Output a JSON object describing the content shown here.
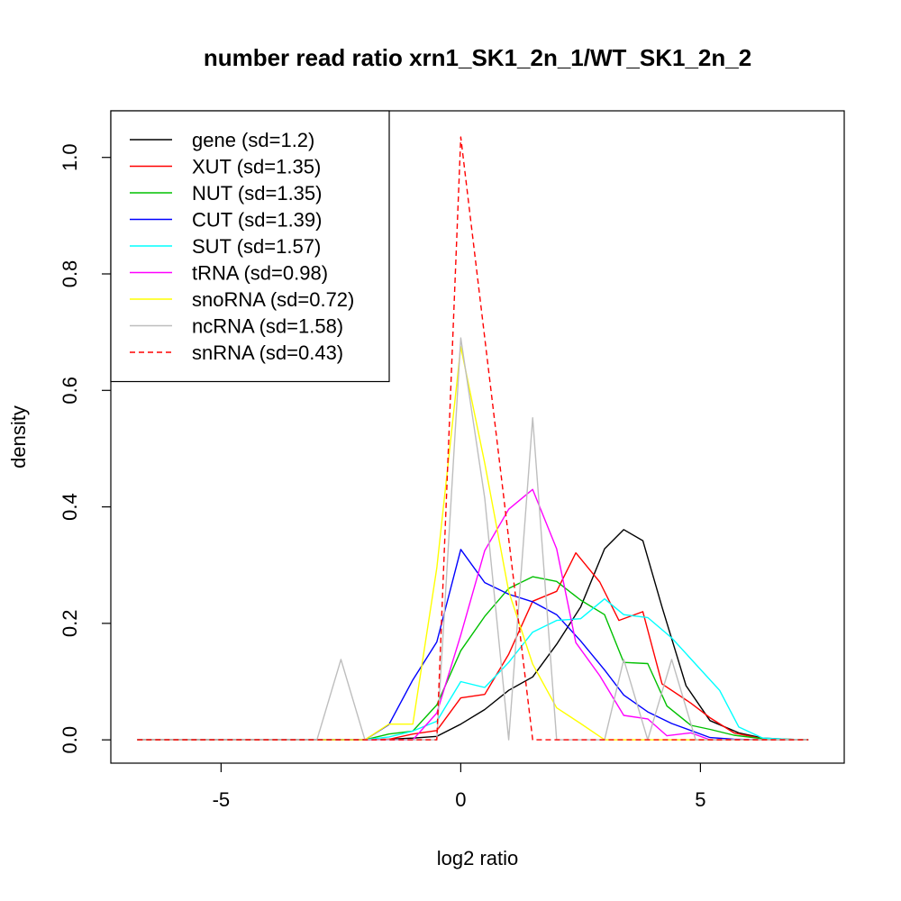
{
  "chart_data": {
    "type": "line",
    "title": "number read ratio xrn1_SK1_2n_1/WT_SK1_2n_2",
    "xlabel": "log2 ratio",
    "ylabel": "density",
    "xlim": [
      -7.3,
      8.0
    ],
    "ylim": [
      -0.04,
      1.08
    ],
    "xticks": [
      -5,
      0,
      5
    ],
    "xtick_labels": [
      "-5",
      "0",
      "5"
    ],
    "yticks": [
      0.0,
      0.2,
      0.4,
      0.6,
      0.8,
      1.0
    ],
    "ytick_labels": [
      "0.0",
      "0.2",
      "0.4",
      "0.6",
      "0.8",
      "1.0"
    ],
    "grid": false,
    "legend_position": "top-left",
    "series": [
      {
        "name": "gene (sd=1.2)",
        "color": "#000000",
        "dash": "solid",
        "x": [
          -6.75,
          -3.0,
          -2.0,
          -1.5,
          -1.0,
          -0.5,
          0.0,
          0.5,
          1.0,
          1.5,
          2.0,
          2.5,
          3.0,
          3.4,
          3.8,
          4.2,
          4.7,
          5.2,
          5.8,
          6.3,
          6.8,
          7.25
        ],
        "y": [
          0.0,
          0.0,
          0.0,
          0.001,
          0.003,
          0.006,
          0.027,
          0.052,
          0.085,
          0.108,
          0.164,
          0.228,
          0.328,
          0.361,
          0.342,
          0.228,
          0.093,
          0.033,
          0.012,
          0.003,
          0.001,
          0.0
        ]
      },
      {
        "name": "XUT (sd=1.35)",
        "color": "#ff0000",
        "dash": "solid",
        "x": [
          -6.75,
          -3.0,
          -2.0,
          -1.5,
          -1.0,
          -0.5,
          0.0,
          0.5,
          1.0,
          1.5,
          2.0,
          2.4,
          2.9,
          3.3,
          3.8,
          4.2,
          4.8,
          5.2,
          5.7,
          6.3,
          7.25
        ],
        "y": [
          0.0,
          0.0,
          0.0,
          0.001,
          0.01,
          0.016,
          0.072,
          0.078,
          0.147,
          0.238,
          0.255,
          0.321,
          0.271,
          0.205,
          0.22,
          0.096,
          0.063,
          0.038,
          0.012,
          0.002,
          0.0
        ]
      },
      {
        "name": "NUT (sd=1.35)",
        "color": "#00c000",
        "dash": "solid",
        "x": [
          -6.75,
          -3.0,
          -2.0,
          -1.5,
          -1.0,
          -0.5,
          0.0,
          0.5,
          1.0,
          1.5,
          2.0,
          2.5,
          3.0,
          3.4,
          3.9,
          4.3,
          4.8,
          5.2,
          5.7,
          6.3,
          7.25
        ],
        "y": [
          0.0,
          0.0,
          0.0,
          0.01,
          0.015,
          0.06,
          0.153,
          0.212,
          0.26,
          0.28,
          0.272,
          0.24,
          0.215,
          0.133,
          0.131,
          0.058,
          0.025,
          0.018,
          0.008,
          0.002,
          0.0
        ]
      },
      {
        "name": "CUT (sd=1.39)",
        "color": "#0000ff",
        "dash": "solid",
        "x": [
          -6.75,
          -3.0,
          -2.0,
          -1.5,
          -1.0,
          -0.5,
          0.0,
          0.5,
          1.0,
          1.5,
          2.0,
          2.5,
          3.0,
          3.4,
          3.9,
          4.4,
          5.2,
          5.7,
          6.3,
          7.25
        ],
        "y": [
          0.0,
          0.0,
          0.0,
          0.026,
          0.103,
          0.168,
          0.327,
          0.27,
          0.25,
          0.237,
          0.215,
          0.17,
          0.12,
          0.077,
          0.048,
          0.028,
          0.004,
          0.001,
          0.0,
          0.0
        ]
      },
      {
        "name": "SUT (sd=1.57)",
        "color": "#00ffff",
        "dash": "solid",
        "x": [
          -6.75,
          -3.0,
          -2.0,
          -1.5,
          -1.0,
          -0.5,
          0.0,
          0.5,
          1.0,
          1.5,
          2.0,
          2.5,
          3.0,
          3.4,
          3.9,
          4.4,
          4.9,
          5.4,
          5.8,
          6.3,
          6.8,
          7.25
        ],
        "y": [
          0.0,
          0.0,
          0.0,
          0.005,
          0.015,
          0.032,
          0.1,
          0.09,
          0.133,
          0.185,
          0.205,
          0.208,
          0.242,
          0.215,
          0.21,
          0.175,
          0.13,
          0.085,
          0.022,
          0.003,
          0.001,
          0.0
        ]
      },
      {
        "name": "tRNA (sd=0.98)",
        "color": "#ff00ff",
        "dash": "solid",
        "x": [
          -6.75,
          -3.0,
          -2.0,
          -1.5,
          -1.0,
          -0.5,
          0.0,
          0.5,
          1.0,
          1.5,
          2.0,
          2.4,
          2.9,
          3.4,
          3.9,
          4.3,
          4.8,
          5.2,
          6.3,
          7.25
        ],
        "y": [
          0.0,
          0.0,
          0.0,
          0.0,
          0.0,
          0.046,
          0.18,
          0.325,
          0.396,
          0.43,
          0.328,
          0.167,
          0.11,
          0.042,
          0.036,
          0.007,
          0.012,
          0.0,
          0.0,
          0.0
        ]
      },
      {
        "name": "snoRNA (sd=0.72)",
        "color": "#ffff00",
        "dash": "solid",
        "x": [
          -6.75,
          -3.0,
          -2.0,
          -1.5,
          -1.0,
          -0.5,
          0.0,
          0.5,
          1.0,
          1.5,
          2.0,
          2.5,
          3.0,
          3.4,
          7.25
        ],
        "y": [
          0.0,
          0.0,
          0.0,
          0.027,
          0.027,
          0.295,
          0.675,
          0.475,
          0.255,
          0.13,
          0.055,
          0.028,
          0.0,
          0.0,
          0.0
        ]
      },
      {
        "name": "ncRNA (sd=1.58)",
        "color": "#bebebe",
        "dash": "solid",
        "x": [
          -6.75,
          -3.0,
          -2.5,
          -2.0,
          -1.5,
          -1.0,
          -0.5,
          0.0,
          0.5,
          1.0,
          1.5,
          2.0,
          2.5,
          3.0,
          3.4,
          3.9,
          4.4,
          4.9,
          7.25
        ],
        "y": [
          0.0,
          0.0,
          0.138,
          0.0,
          0.0,
          0.0,
          0.0,
          0.69,
          0.415,
          0.0,
          0.553,
          0.0,
          0.0,
          0.0,
          0.138,
          0.0,
          0.138,
          0.0,
          0.0
        ]
      },
      {
        "name": "snRNA (sd=0.43)",
        "color": "#ff0000",
        "dash": "dashed",
        "x": [
          -6.75,
          -0.5,
          0.0,
          1.5,
          7.25
        ],
        "y": [
          0.0,
          0.0,
          1.035,
          0.0,
          0.0
        ]
      }
    ]
  }
}
